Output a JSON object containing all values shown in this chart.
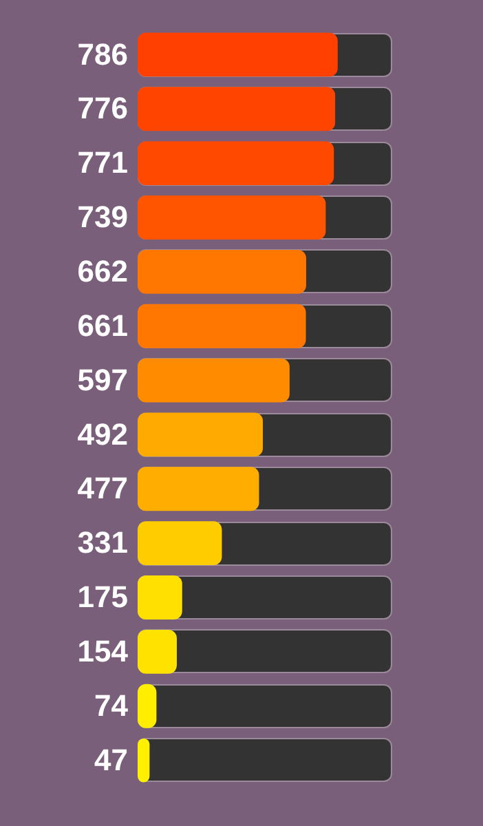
{
  "chart_data": {
    "type": "bar",
    "orientation": "horizontal",
    "categories": [
      null,
      null,
      null,
      null,
      null,
      null,
      null,
      null,
      null,
      null,
      null,
      null,
      null,
      null
    ],
    "values": [
      786,
      776,
      771,
      739,
      662,
      661,
      597,
      492,
      477,
      331,
      175,
      154,
      74,
      47
    ],
    "colors": [
      "#ff4000",
      "#ff4400",
      "#ff4800",
      "#ff5500",
      "#ff7700",
      "#ff7700",
      "#ff8c00",
      "#ffaa00",
      "#ffae00",
      "#ffcc00",
      "#ffe000",
      "#ffe200",
      "#ffee00",
      "#fff000"
    ],
    "xlim": [
      0,
      1000
    ],
    "data_labels": true,
    "legend": false,
    "tick_labels": false
  }
}
